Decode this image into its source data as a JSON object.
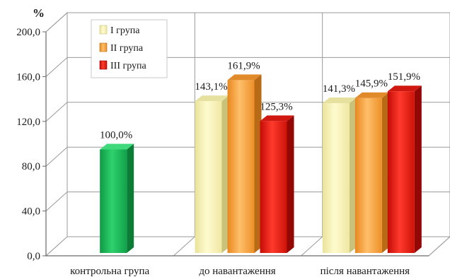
{
  "chart_data": {
    "type": "bar",
    "style": "3d-clustered-column",
    "unit_label": "%",
    "ylim": [
      0,
      200
    ],
    "y_ticks": [
      "0,0",
      "40,0",
      "80,0",
      "120,0",
      "160,0",
      "200,0"
    ],
    "y_tick_values": [
      0,
      40,
      80,
      120,
      160,
      200
    ],
    "categories": [
      "контрольна група",
      "до навантаження",
      "після навантаження"
    ],
    "series": [
      {
        "name": "",
        "color": "#1eb45a",
        "points": [
          {
            "category": 0,
            "value": 100.0,
            "label": "100,0%"
          }
        ]
      },
      {
        "name": "I група",
        "color": "#fcf6b0",
        "points": [
          {
            "category": 1,
            "value": 143.1,
            "label": "143,1%"
          },
          {
            "category": 2,
            "value": 141.3,
            "label": "141,3%"
          }
        ]
      },
      {
        "name": "II група",
        "color": "#f7a23d",
        "points": [
          {
            "category": 1,
            "value": 161.9,
            "label": "161,9%"
          },
          {
            "category": 2,
            "value": 145.9,
            "label": "145,9%"
          }
        ]
      },
      {
        "name": "III група",
        "color": "#e81810",
        "points": [
          {
            "category": 1,
            "value": 125.3,
            "label": "125,3%"
          },
          {
            "category": 2,
            "value": 151.9,
            "label": "151,9%"
          }
        ]
      }
    ],
    "legend": {
      "position": "top-left",
      "entries": [
        {
          "label": "I група",
          "color": "#fcf6b0"
        },
        {
          "label": "II група",
          "color": "#f7a23d"
        },
        {
          "label": "III група",
          "color": "#e81810"
        }
      ]
    },
    "grid": true
  }
}
